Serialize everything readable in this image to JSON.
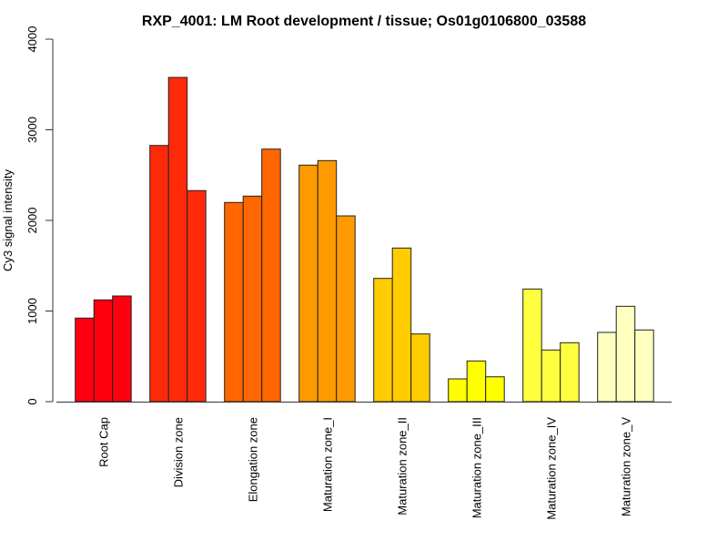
{
  "chart_data": {
    "type": "bar",
    "title": "RXP_4001: LM Root development / tissue; Os01g0106800_03588",
    "xlabel": "",
    "ylabel": "Cy3 signal intensity",
    "ylim": [
      0,
      4000
    ],
    "yticks": [
      "0",
      "1000",
      "2000",
      "3000",
      "4000"
    ],
    "grid": false,
    "categories": [
      "Root Cap",
      "Division zone",
      "Elongation zone",
      "Maturation zone_I",
      "Maturation zone_II",
      "Maturation zone_III",
      "Maturation zone_IV",
      "Maturation zone_V"
    ],
    "colors": [
      "#FF0010",
      "#FF2A0A",
      "#FF6600",
      "#FF9900",
      "#FFCC00",
      "#FFFF00",
      "#FFFF40",
      "#FFFFC0"
    ],
    "values": [
      [
        922,
        1123,
        1166
      ],
      [
        2827,
        3578,
        2329
      ],
      [
        2198,
        2268,
        2787
      ],
      [
        2610,
        2660,
        2050
      ],
      [
        1360,
        1695,
        747
      ],
      [
        251,
        449,
        274
      ],
      [
        1243,
        570,
        650
      ],
      [
        764,
        1052,
        791
      ]
    ]
  }
}
